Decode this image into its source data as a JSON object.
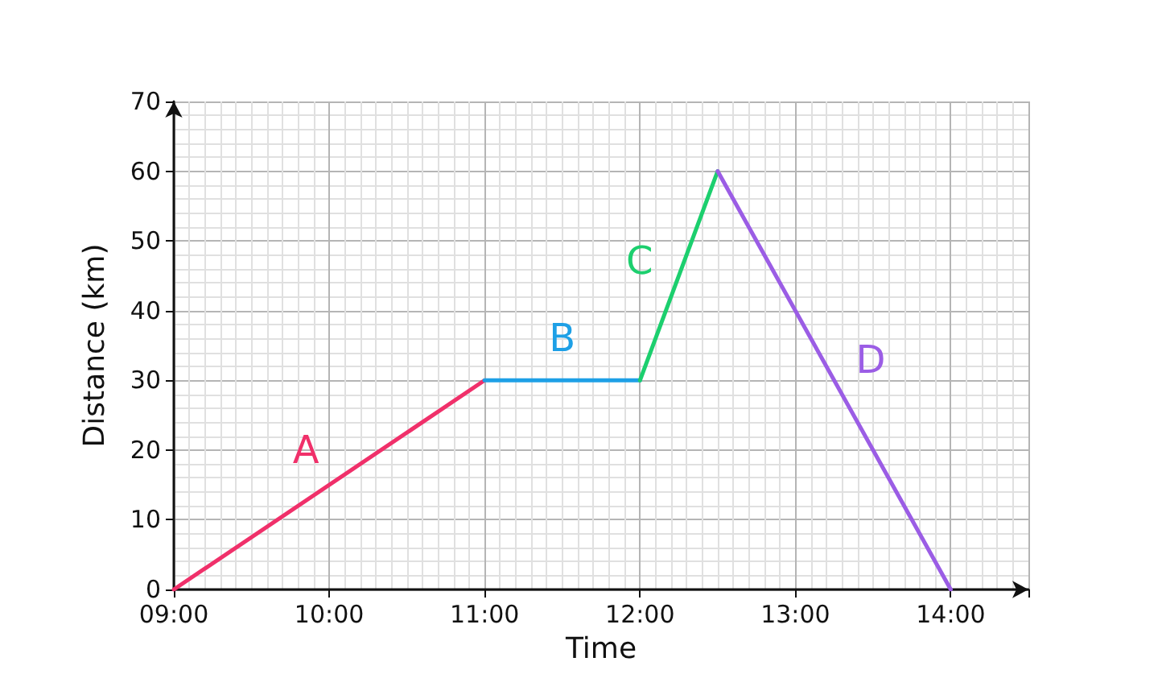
{
  "chart_data": {
    "type": "line",
    "xlabel": "Time",
    "ylabel": "Distance (km)",
    "xlim": [
      9,
      14.5
    ],
    "ylim": [
      0,
      70
    ],
    "xticks": [
      {
        "value": 9,
        "label": "09:00"
      },
      {
        "value": 10,
        "label": "10:00"
      },
      {
        "value": 11,
        "label": "11:00"
      },
      {
        "value": 12,
        "label": "12:00"
      },
      {
        "value": 13,
        "label": "13:00"
      },
      {
        "value": 14,
        "label": "14:00"
      }
    ],
    "yticks": [
      0,
      10,
      20,
      30,
      40,
      50,
      60,
      70
    ],
    "grid": true,
    "marker": "none",
    "line_style": "solid",
    "series": [
      {
        "name": "A",
        "color": "#f0306a",
        "x": [
          9,
          11
        ],
        "values": [
          0,
          30
        ]
      },
      {
        "name": "B",
        "color": "#1ea0e6",
        "x": [
          11,
          12
        ],
        "values": [
          30,
          30
        ]
      },
      {
        "name": "C",
        "color": "#1ccf6e",
        "x": [
          12,
          12.5
        ],
        "values": [
          30,
          60
        ]
      },
      {
        "name": "D",
        "color": "#9b5de5",
        "x": [
          12.5,
          14
        ],
        "values": [
          60,
          0
        ]
      }
    ]
  }
}
